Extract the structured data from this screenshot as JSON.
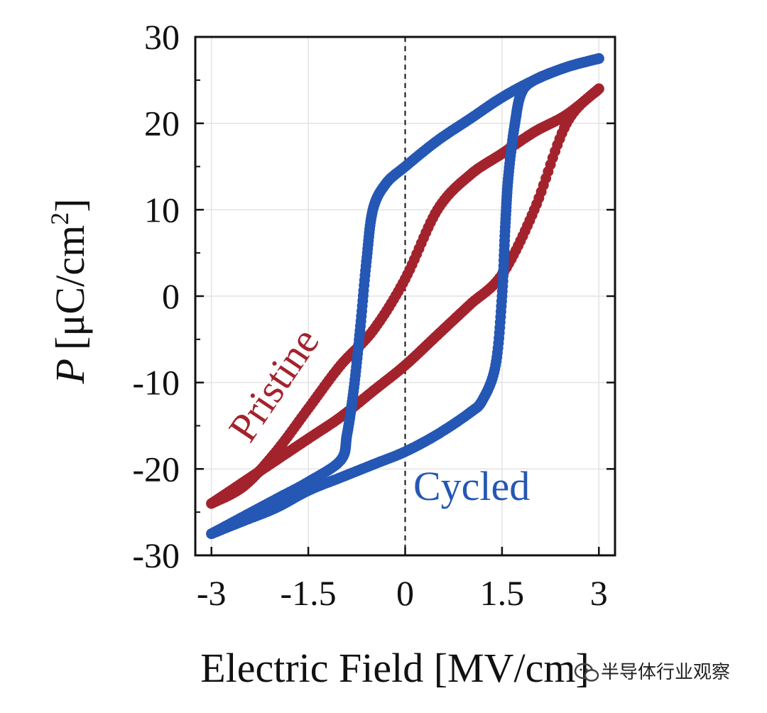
{
  "chart_data": {
    "type": "scatter",
    "xlabel": "Electric Field [MV/cm]",
    "ylabel_main": "P",
    "ylabel_unit": "[μC/cm",
    "ylabel_sup": "2",
    "ylabel_close": "]",
    "xlim": [
      -3.25,
      3.25
    ],
    "ylim": [
      -30,
      30
    ],
    "grid": true,
    "x_ticks": [
      -3,
      -1.5,
      0,
      1.5,
      3
    ],
    "x_tick_labels": [
      "-3",
      "-1.5",
      "0",
      "1.5",
      "3"
    ],
    "y_ticks": [
      -30,
      -20,
      -10,
      0,
      10,
      20,
      30
    ],
    "y_tick_labels": [
      "-30",
      "-20",
      "-10",
      "0",
      "10",
      "20",
      "30"
    ],
    "zero_line": "vertical dashed line at x = 0",
    "series": [
      {
        "name": "Pristine",
        "color": "#a3232d",
        "branches": [
          {
            "x": [
              -3.0,
              -2.5,
              -2.0,
              -1.5,
              -1.0,
              -0.5,
              0.0,
              0.5,
              1.0,
              1.5,
              2.0,
              2.5,
              3.0
            ],
            "y": [
              -24.0,
              -21.5,
              -19.0,
              -16.5,
              -14.0,
              -11.0,
              -8.0,
              -4.5,
              -1.0,
              2.5,
              10.0,
              20.0,
              24.0
            ]
          },
          {
            "x": [
              3.0,
              2.5,
              2.0,
              1.5,
              1.0,
              0.5,
              0.0,
              -0.5,
              -1.0,
              -1.5,
              -2.0,
              -2.5,
              -3.0
            ],
            "y": [
              24.0,
              21.0,
              19.0,
              16.5,
              14.0,
              10.0,
              2.0,
              -4.0,
              -8.0,
              -13.0,
              -18.0,
              -22.0,
              -24.0
            ]
          }
        ]
      },
      {
        "name": "Cycled",
        "color": "#2557b4",
        "branches": [
          {
            "x": [
              -3.0,
              -2.5,
              -2.0,
              -1.5,
              -1.0,
              -0.9,
              -0.8,
              -0.7,
              -0.6,
              -0.5,
              -0.3,
              0.0,
              0.5,
              1.0,
              1.5,
              2.0,
              2.5,
              3.0
            ],
            "y": [
              -27.5,
              -25.5,
              -23.5,
              -21.5,
              -19.0,
              -16.0,
              -11.0,
              -4.0,
              4.0,
              10.0,
              13.0,
              15.0,
              18.0,
              20.5,
              23.0,
              25.0,
              26.5,
              27.5
            ]
          },
          {
            "x": [
              3.0,
              2.5,
              2.0,
              1.8,
              1.7,
              1.6,
              1.55,
              1.5,
              1.4,
              1.2,
              1.0,
              0.5,
              0.0,
              -0.5,
              -1.0,
              -1.5,
              -2.0,
              -2.5,
              -3.0
            ],
            "y": [
              27.5,
              26.5,
              25.0,
              23.5,
              20.0,
              14.0,
              8.0,
              0.0,
              -8.0,
              -12.0,
              -13.5,
              -16.0,
              -18.0,
              -19.5,
              -21.0,
              -22.5,
              -24.5,
              -26.0,
              -27.5
            ]
          }
        ]
      }
    ],
    "annotations": [
      {
        "text": "Pristine",
        "color": "#a3232d"
      },
      {
        "text": "Cycled",
        "color": "#2557b4"
      }
    ]
  },
  "watermark": {
    "text": "半导体行业观察",
    "icon": "wechat-icon"
  }
}
